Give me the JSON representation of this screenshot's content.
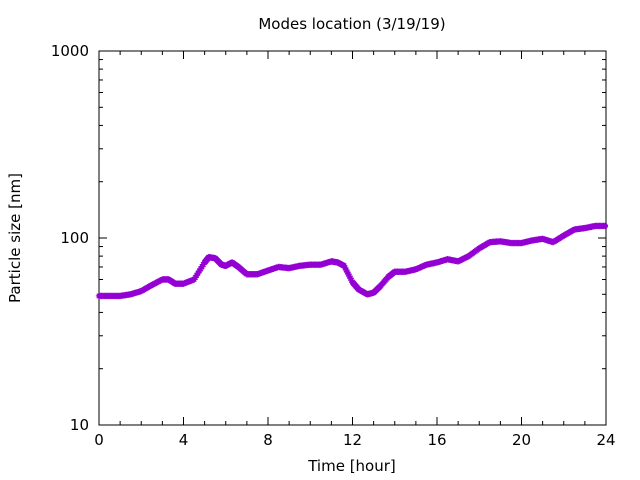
{
  "chart_data": {
    "type": "line",
    "title": "Modes location (3/19/19)",
    "xlabel": "Time [hour]",
    "ylabel": "Particle size [nm]",
    "xlim": [
      0,
      24
    ],
    "ylim": [
      10,
      1000
    ],
    "yscale": "log",
    "grid": false,
    "legend": "none",
    "x_ticks": [
      "0",
      "4",
      "8",
      "12",
      "16",
      "20",
      "24"
    ],
    "y_ticks": [
      "10",
      "100",
      "1000"
    ],
    "series": [
      {
        "color": "#9400d3",
        "marker": "star",
        "x": [
          0,
          0.5,
          1,
          1.5,
          2,
          2.5,
          3,
          3.3,
          3.6,
          4,
          4.5,
          5,
          5.2,
          5.5,
          5.8,
          6.0,
          6.3,
          6.6,
          7,
          7.5,
          8,
          8.5,
          9,
          9.5,
          10,
          10.5,
          11,
          11.3,
          11.6,
          12,
          12.3,
          12.7,
          13,
          13.3,
          13.7,
          14,
          14.5,
          15,
          15.5,
          16,
          16.5,
          17,
          17.5,
          18,
          18.5,
          19,
          19.5,
          20,
          20.5,
          21,
          21.5,
          22,
          22.5,
          23,
          23.5,
          24
        ],
        "y": [
          49,
          49,
          49,
          50,
          52,
          56,
          60,
          60,
          57,
          57,
          60,
          74,
          79,
          78,
          72,
          71,
          74,
          70,
          64,
          64,
          67,
          70,
          69,
          71,
          72,
          72,
          75,
          74,
          71,
          58,
          53,
          50,
          51,
          55,
          62,
          66,
          66,
          68,
          72,
          74,
          77,
          75,
          80,
          88,
          95,
          96,
          94,
          94,
          97,
          99,
          95,
          103,
          111,
          113,
          116,
          116
        ]
      }
    ]
  }
}
